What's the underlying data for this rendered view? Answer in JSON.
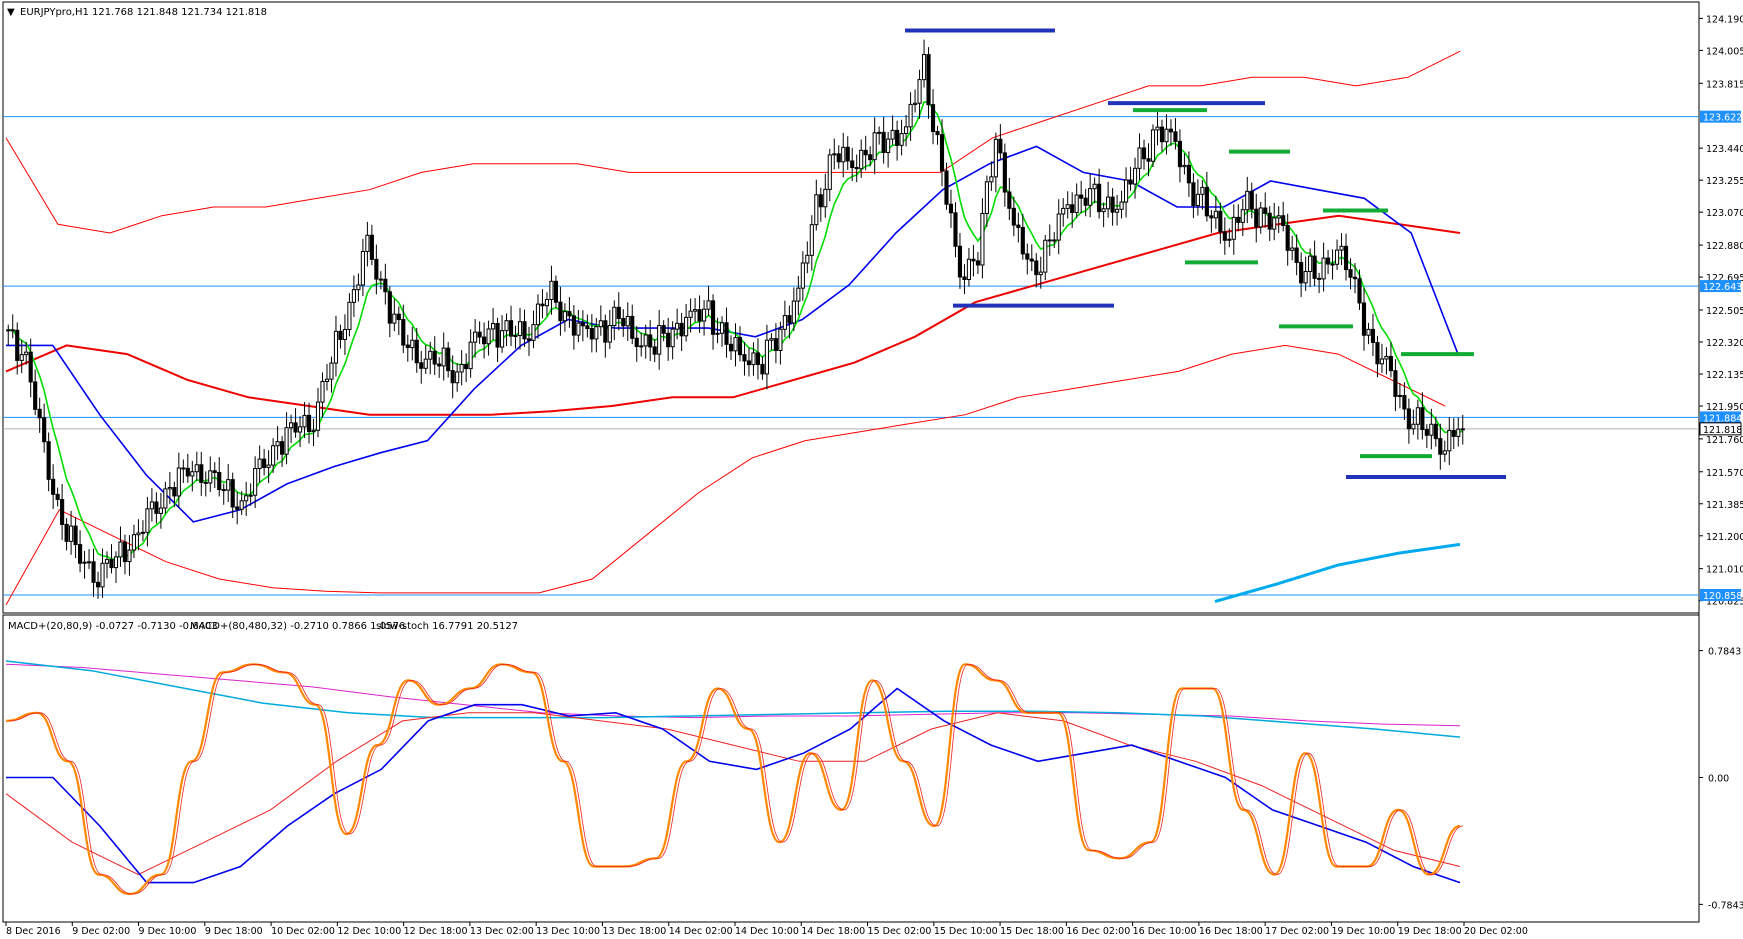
{
  "window": {
    "symbol_header": "EURJPYpro,H1  121.768 121.848 121.734 121.818"
  },
  "indicator_header": {
    "macd1": "MACD+(20,80,9) -0.0727 -0.7130 -0.6403",
    "macd2": "MACD+(80,480,32) -0.2710 0.7866 1.0576",
    "stoch": "slow-stoch 16.7791 20.5127"
  },
  "colors": {
    "candle": "#000000",
    "ma_green": "#00dd00",
    "ma_blue": "#0000ee",
    "ma_red_thick": "#ee0000",
    "envelope_red": "#ff0000",
    "ma_cyan": "#00aaee",
    "hline": "#1e90ff",
    "level_blue": "#2233bb",
    "level_green": "#11aa33",
    "stoch_orange": "#ff8800",
    "macd_magenta": "#dd22cc",
    "macd_cyan": "#00aadd",
    "price_tag_bg": "#1e90ff"
  },
  "chart_data": [
    {
      "type": "candlestick",
      "title": "EURJPYpro,H1  121.768 121.848 121.734 121.818",
      "ylim": [
        120.8,
        124.25
      ],
      "y_ticks": [
        "124.190",
        "124.005",
        "123.815",
        "123.440",
        "123.255",
        "123.070",
        "122.880",
        "122.695",
        "122.505",
        "122.320",
        "122.135",
        "121.950",
        "121.760",
        "121.570",
        "121.385",
        "121.200",
        "121.010",
        "120.825"
      ],
      "x_ticks": [
        "8 Dec 2016",
        "9 Dec 02:00",
        "9 Dec 10:00",
        "9 Dec 18:00",
        "10 Dec 02:00",
        "12 Dec 10:00",
        "12 Dec 18:00",
        "13 Dec 02:00",
        "13 Dec 10:00",
        "13 Dec 18:00",
        "14 Dec 02:00",
        "14 Dec 10:00",
        "14 Dec 18:00",
        "15 Dec 02:00",
        "15 Dec 10:00",
        "15 Dec 18:00",
        "16 Dec 02:00",
        "16 Dec 10:00",
        "16 Dec 18:00",
        "17 Dec 02:00",
        "19 Dec 10:00",
        "19 Dec 18:00",
        "20 Dec 02:00"
      ],
      "horizontal_lines": [
        {
          "value": 123.622,
          "label": "123.622"
        },
        {
          "value": 122.643,
          "label": "122.643"
        },
        {
          "value": 121.884,
          "label": "121.884"
        },
        {
          "value": 120.858,
          "label": "120.858"
        }
      ],
      "current_price": {
        "value": 121.818,
        "label": "121.818"
      },
      "candles_close_path": [
        122.35,
        122.25,
        121.65,
        121.3,
        121.05,
        121.0,
        121.05,
        121.2,
        121.3,
        121.5,
        121.55,
        121.6,
        121.45,
        121.4,
        121.55,
        121.75,
        121.8,
        121.9,
        122.2,
        122.55,
        122.85,
        122.6,
        122.3,
        122.25,
        122.2,
        122.15,
        122.3,
        122.4,
        122.35,
        122.4,
        122.6,
        122.5,
        122.35,
        122.4,
        122.45,
        122.35,
        122.3,
        122.4,
        122.45,
        122.5,
        122.3,
        122.25,
        122.2,
        122.4,
        122.6,
        123.1,
        123.4,
        123.35,
        123.45,
        123.5,
        123.55,
        123.9,
        123.3,
        122.7,
        122.85,
        123.5,
        123.0,
        122.7,
        122.9,
        123.1,
        123.2,
        123.1,
        123.15,
        123.35,
        123.55,
        123.45,
        123.2,
        123.05,
        122.95,
        123.1,
        123.05,
        122.95,
        122.75,
        122.7,
        122.9,
        122.6,
        122.3,
        122.1,
        121.9,
        121.8,
        121.75,
        121.818
      ],
      "series": [
        {
          "name": "Envelope upper",
          "values": [
            123.5,
            123.0,
            122.95,
            123.05,
            123.1,
            123.1,
            123.15,
            123.2,
            123.3,
            123.35,
            123.35,
            123.35,
            123.3,
            123.3,
            123.3,
            123.3,
            123.3,
            123.3,
            123.3,
            123.5,
            123.6,
            123.7,
            123.8,
            123.8,
            123.85,
            123.85,
            123.8,
            123.85,
            124.0
          ]
        },
        {
          "name": "Envelope lower",
          "values": [
            120.8,
            121.35,
            121.2,
            121.05,
            120.95,
            120.9,
            120.88,
            120.87,
            120.87,
            120.87,
            120.87,
            120.95,
            121.2,
            121.45,
            121.65,
            121.75,
            121.8,
            121.85,
            121.9,
            122.0,
            122.05,
            122.1,
            122.15,
            122.25,
            122.3,
            122.25,
            122.1,
            121.95
          ]
        },
        {
          "name": "Blue MA",
          "values": [
            122.3,
            122.3,
            121.9,
            121.55,
            121.28,
            121.35,
            121.5,
            121.6,
            121.68,
            121.75,
            122.05,
            122.3,
            122.45,
            122.4,
            122.4,
            122.4,
            122.35,
            122.45,
            122.65,
            122.95,
            123.2,
            123.35,
            123.45,
            123.3,
            123.25,
            123.1,
            123.1,
            123.25,
            123.2,
            123.15,
            122.95,
            122.25
          ]
        },
        {
          "name": "Red MA",
          "values": [
            122.15,
            122.3,
            122.25,
            122.1,
            122.0,
            121.95,
            121.9,
            121.9,
            121.9,
            121.92,
            121.95,
            122.0,
            122.0,
            122.1,
            122.2,
            122.35,
            122.55,
            122.65,
            122.75,
            122.85,
            122.95,
            123.0,
            123.05,
            123.0,
            122.95
          ]
        },
        {
          "name": "Cyan MA",
          "values": [
            120.82,
            120.92,
            121.03,
            121.1,
            121.15
          ]
        }
      ],
      "levels": [
        {
          "color": "blue",
          "value": 124.12
        },
        {
          "color": "blue",
          "value": 123.7
        },
        {
          "color": "green",
          "value": 123.66
        },
        {
          "color": "green",
          "value": 123.42
        },
        {
          "color": "green",
          "value": 123.08
        },
        {
          "color": "blue",
          "value": 122.53
        },
        {
          "color": "green",
          "value": 122.78
        },
        {
          "color": "green",
          "value": 122.41
        },
        {
          "color": "green",
          "value": 122.25
        },
        {
          "color": "green",
          "value": 121.66
        },
        {
          "color": "blue",
          "value": 121.54
        }
      ]
    },
    {
      "type": "line",
      "title": "MACD+(20,80,9) -0.0727 -0.7130 -0.6403  MACD+(80,480,32) -0.2710 0.7866 1.0576  slow-stoch 16.7791 20.5127",
      "ylim": [
        -0.85,
        0.85
      ],
      "y_ticks": [
        "0.7843",
        "0.00",
        "-0.7843"
      ],
      "series": [
        {
          "name": "Stochastic",
          "values": [
            0.35,
            0.4,
            0.1,
            -0.6,
            -0.72,
            -0.6,
            0.1,
            0.65,
            0.7,
            0.65,
            0.45,
            -0.35,
            0.2,
            0.6,
            0.45,
            0.55,
            0.7,
            0.65,
            0.1,
            -0.55,
            -0.55,
            -0.5,
            0.1,
            0.55,
            0.3,
            -0.4,
            0.15,
            -0.2,
            0.6,
            0.1,
            -0.3,
            0.7,
            0.6,
            0.4,
            0.4,
            -0.45,
            -0.5,
            -0.4,
            0.55,
            0.55,
            -0.2,
            -0.6,
            0.15,
            -0.55,
            -0.55,
            -0.2,
            -0.6,
            -0.3
          ]
        },
        {
          "name": "MACD main",
          "values": [
            0.0,
            0.0,
            -0.3,
            -0.65,
            -0.65,
            -0.55,
            -0.3,
            -0.1,
            0.05,
            0.35,
            0.45,
            0.45,
            0.38,
            0.4,
            0.3,
            0.1,
            0.05,
            0.15,
            0.3,
            0.55,
            0.35,
            0.2,
            0.1,
            0.15,
            0.2,
            0.1,
            0.0,
            -0.2,
            -0.3,
            -0.4,
            -0.55,
            -0.65
          ]
        },
        {
          "name": "MACD signal",
          "values": [
            -0.1,
            -0.4,
            -0.6,
            -0.4,
            -0.2,
            0.1,
            0.35,
            0.4,
            0.4,
            0.35,
            0.3,
            0.2,
            0.1,
            0.1,
            0.3,
            0.4,
            0.35,
            0.2,
            0.1,
            -0.05,
            -0.25,
            -0.45,
            -0.55
          ]
        },
        {
          "name": "MACD2 magenta",
          "values": [
            0.7,
            0.68,
            0.64,
            0.6,
            0.56,
            0.5,
            0.45,
            0.4,
            0.38,
            0.37,
            0.38,
            0.38,
            0.39,
            0.4,
            0.4,
            0.39,
            0.38,
            0.35,
            0.33,
            0.32
          ]
        },
        {
          "name": "MACD2 cyan",
          "values": [
            0.72,
            0.66,
            0.56,
            0.46,
            0.4,
            0.37,
            0.37,
            0.37,
            0.38,
            0.39,
            0.4,
            0.41,
            0.41,
            0.4,
            0.38,
            0.34,
            0.3,
            0.25
          ]
        }
      ]
    }
  ]
}
